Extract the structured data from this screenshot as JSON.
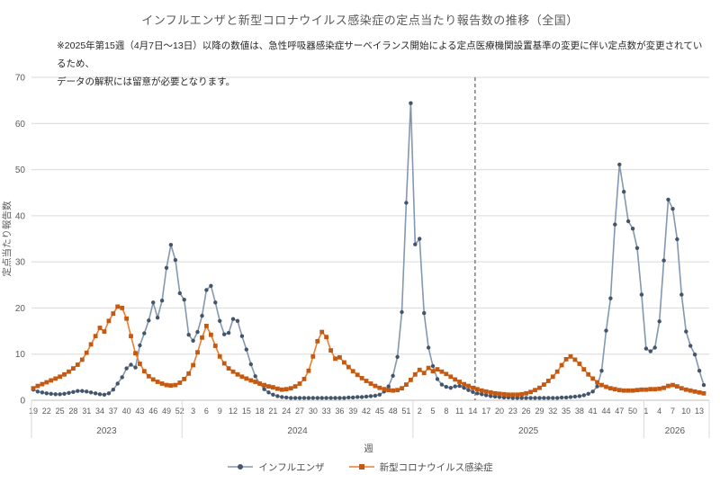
{
  "title": "インフルエンザと新型コロナウイルス感染症の定点当たり報告数の推移（全国）",
  "note": {
    "line1": "※2025年第15週（4月7日～13日）以降の数値は、急性呼吸器感染症サーベイランス開始による定点医療機関設置基準の変更に伴い定点数が変更されているため、",
    "line2": "データの解釈には留意が必要となります。"
  },
  "chart_data": {
    "type": "line",
    "title": "インフルエンザと新型コロナウイルス感染症の定点当たり報告数の推移（全国）",
    "y_axis": {
      "label": "定点当たり報告数",
      "min": 0,
      "max": 70,
      "step": 10,
      "grid": true
    },
    "x_axis": {
      "label": "週",
      "tick_every": 3,
      "years": [
        {
          "label": "2023",
          "first_week": 19,
          "last_week": 52
        },
        {
          "label": "2024",
          "first_week": 1,
          "last_week": 52
        },
        {
          "label": "2025",
          "first_week": 1,
          "last_week": 52
        },
        {
          "label": "2026",
          "first_week": 1,
          "last_week": 14
        }
      ]
    },
    "annotation": {
      "type": "vertical_dashed_line",
      "year": "2025",
      "after_week": 14,
      "color": "#404040"
    },
    "legend_position": "bottom",
    "colors": {
      "grid": "#d9d9d9",
      "axis": "#bfbfbf",
      "text": "#595959"
    },
    "series": [
      {
        "name": "インフルエンザ",
        "marker": "circle",
        "line_color": "#8497B0",
        "marker_color": "#44546A",
        "values_by_year": {
          "2023": [
            2.3,
            1.9,
            1.7,
            1.5,
            1.4,
            1.3,
            1.3,
            1.4,
            1.6,
            1.8,
            2.0,
            2.0,
            1.9,
            1.7,
            1.5,
            1.3,
            1.2,
            1.5,
            2.3,
            3.6,
            5.0,
            6.9,
            7.7,
            7.1,
            11.9,
            14.5,
            17.3,
            21.2,
            17.9,
            21.6,
            28.7,
            33.7,
            30.4,
            23.2
          ],
          "2024": [
            21.8,
            14.2,
            12.9,
            14.8,
            18.3,
            23.9,
            24.8,
            21.2,
            17.2,
            14.3,
            14.6,
            17.6,
            17.2,
            13.9,
            11.0,
            7.8,
            5.2,
            3.6,
            2.4,
            1.7,
            1.2,
            0.9,
            0.7,
            0.6,
            0.5,
            0.5,
            0.5,
            0.5,
            0.5,
            0.5,
            0.5,
            0.5,
            0.5,
            0.5,
            0.5,
            0.5,
            0.5,
            0.6,
            0.6,
            0.7,
            0.7,
            0.8,
            0.9,
            1.0,
            1.2,
            1.9,
            3.0,
            5.3,
            9.4,
            19.1,
            42.8,
            64.4
          ],
          "2025": [
            33.8,
            35.0,
            18.9,
            11.4,
            7.4,
            4.6,
            3.4,
            2.9,
            2.7,
            3.0,
            3.1,
            2.7,
            2.2,
            1.8,
            1.5,
            1.3,
            1.1,
            0.9,
            0.8,
            0.7,
            0.6,
            0.6,
            0.5,
            0.5,
            0.5,
            0.5,
            0.5,
            0.5,
            0.5,
            0.5,
            0.5,
            0.5,
            0.5,
            0.6,
            0.6,
            0.7,
            0.8,
            0.9,
            1.1,
            1.4,
            1.9,
            3.0,
            6.4,
            15.1,
            22.1,
            38.1,
            51.1,
            45.2,
            38.8,
            37.2,
            33.0,
            22.9
          ],
          "2026": [
            11.2,
            10.6,
            11.4,
            17.1,
            30.3,
            43.5,
            41.5,
            34.9,
            22.9,
            14.9,
            11.8,
            9.9,
            6.4,
            3.3
          ]
        }
      },
      {
        "name": "新型コロナウイルス感染症",
        "marker": "square",
        "line_color": "#ED7D31",
        "marker_color": "#C45911",
        "values_by_year": {
          "2023": [
            2.6,
            3.1,
            3.5,
            3.9,
            4.3,
            4.7,
            5.1,
            5.6,
            6.2,
            6.9,
            7.7,
            8.8,
            10.3,
            12.1,
            13.9,
            15.7,
            14.9,
            17.2,
            18.8,
            20.3,
            20.0,
            17.7,
            13.9,
            10.2,
            7.9,
            6.3,
            5.2,
            4.5,
            4.0,
            3.6,
            3.3,
            3.2,
            3.3,
            3.8
          ],
          "2024": [
            4.6,
            5.8,
            7.6,
            10.4,
            13.6,
            16.1,
            14.2,
            11.8,
            9.5,
            8.0,
            6.9,
            6.2,
            5.6,
            5.1,
            4.7,
            4.3,
            4.0,
            3.6,
            3.3,
            3.0,
            2.8,
            2.5,
            2.3,
            2.4,
            2.6,
            3.0,
            3.6,
            4.6,
            6.4,
            9.5,
            12.8,
            14.8,
            13.7,
            10.8,
            9.0,
            9.3,
            8.2,
            7.2,
            6.3,
            5.5,
            4.8,
            4.2,
            3.6,
            3.1,
            2.7,
            2.4,
            2.2,
            2.1,
            2.2,
            2.6,
            3.4,
            4.4
          ],
          "2025": [
            5.6,
            6.6,
            5.9,
            7.0,
            6.3,
            6.7,
            6.2,
            5.7,
            5.1,
            4.5,
            4.0,
            3.5,
            3.1,
            2.7,
            2.4,
            2.1,
            1.9,
            1.7,
            1.5,
            1.4,
            1.3,
            1.2,
            1.2,
            1.2,
            1.3,
            1.5,
            1.8,
            2.2,
            2.7,
            3.4,
            4.2,
            5.1,
            6.2,
            7.6,
            8.9,
            9.5,
            8.8,
            7.9,
            6.7,
            5.6,
            4.7,
            3.9,
            3.3,
            2.9,
            2.6,
            2.4,
            2.2,
            2.1,
            2.1,
            2.1,
            2.2,
            2.3
          ],
          "2026": [
            2.3,
            2.4,
            2.4,
            2.5,
            2.7,
            3.1,
            3.3,
            3.0,
            2.6,
            2.3,
            2.1,
            1.9,
            1.7,
            1.5
          ]
        }
      }
    ]
  }
}
